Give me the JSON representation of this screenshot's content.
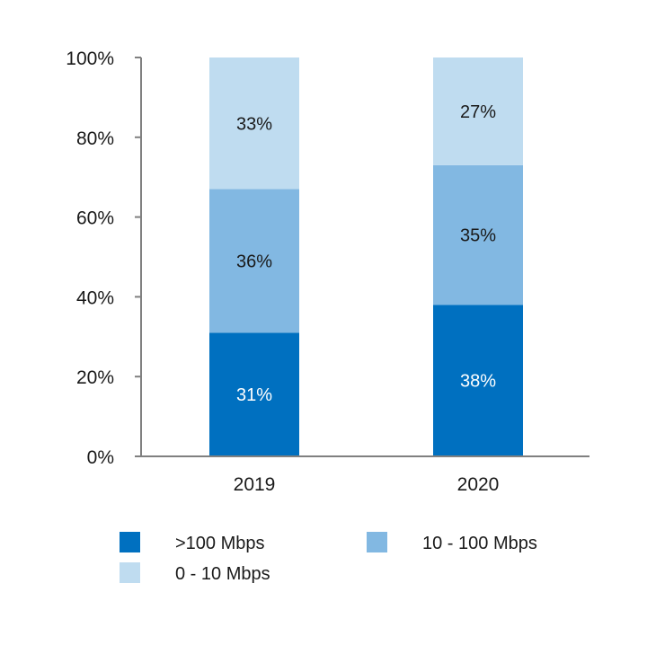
{
  "chart_data": {
    "type": "bar",
    "stacked": true,
    "percent": true,
    "categories": [
      "2019",
      "2020"
    ],
    "series": [
      {
        "name": ">100 Mbps",
        "values": [
          31,
          38
        ],
        "color": "#0070c0",
        "label_color": "#ffffff"
      },
      {
        "name": "10 - 100 Mbps",
        "values": [
          36,
          35
        ],
        "color": "#82b8e2",
        "label_color": "#1a1a1a"
      },
      {
        "name": "0 - 10 Mbps",
        "values": [
          33,
          27
        ],
        "color": "#bfdcf0",
        "label_color": "#1a1a1a"
      }
    ],
    "data_labels": [
      [
        "31%",
        "38%"
      ],
      [
        "36%",
        "35%"
      ],
      [
        "33%",
        "27%"
      ]
    ],
    "ylim": [
      0,
      100
    ],
    "y_ticks": [
      0,
      20,
      40,
      60,
      80,
      100
    ],
    "y_tick_labels": [
      "0%",
      "20%",
      "40%",
      "60%",
      "80%",
      "100%"
    ],
    "title": "",
    "xlabel": "",
    "ylabel": "",
    "grid": false,
    "legend_position": "bottom"
  }
}
